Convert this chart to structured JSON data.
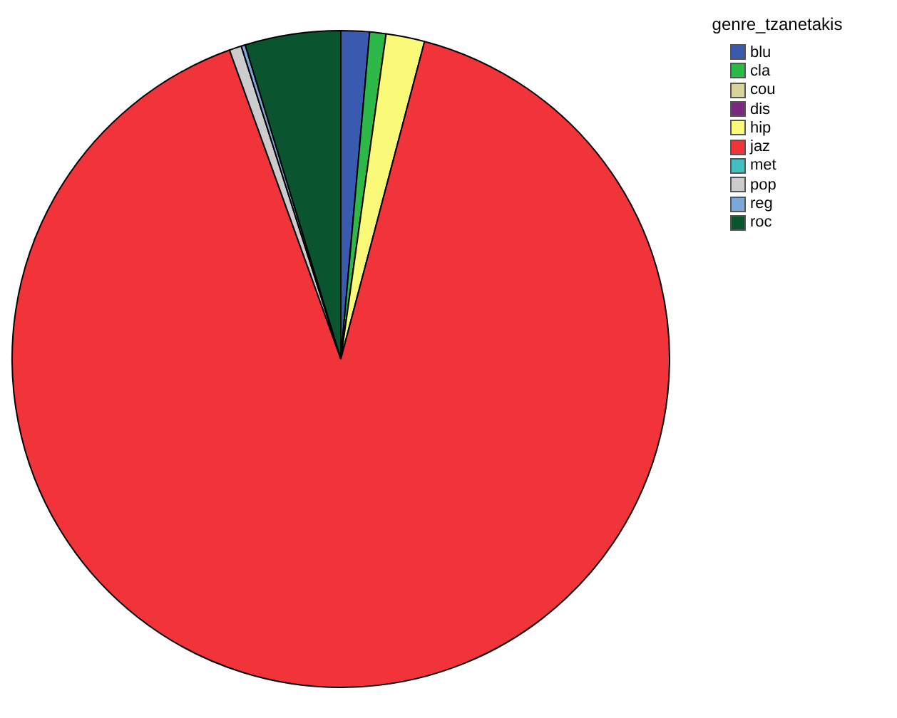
{
  "chart_data": {
    "type": "pie",
    "legend_title": "genre_tzanetakis",
    "legend": "top right",
    "categories": [
      "blu",
      "cla",
      "cou",
      "dis",
      "hip",
      "jaz",
      "met",
      "pop",
      "reg",
      "roc"
    ],
    "values": [
      1.4,
      0.8,
      null,
      null,
      1.9,
      90.4,
      null,
      0.6,
      0.2,
      4.7
    ],
    "colors": [
      "#3a5ab0",
      "#2db84a",
      "#d8d49a",
      "#7a2a7e",
      "#fafa78",
      "#f0343a",
      "#40c0c0",
      "#cccccc",
      "#7aa8d8",
      "#0a5430"
    ]
  }
}
